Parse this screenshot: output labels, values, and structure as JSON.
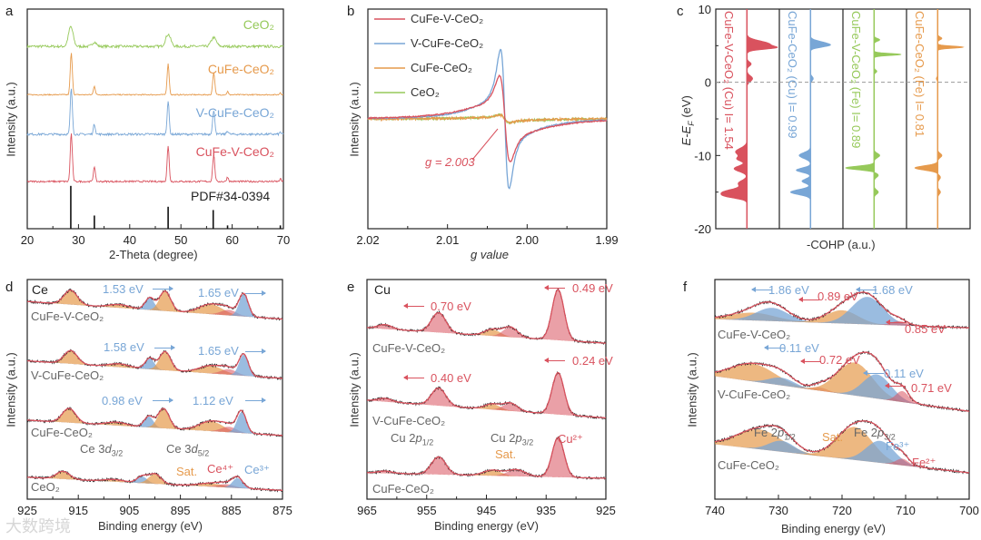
{
  "colors": {
    "red": "#d9525e",
    "blue": "#78a6d6",
    "orange": "#e69a4c",
    "green": "#96c95a",
    "black": "#222222",
    "fit": "#d9525e"
  },
  "watermark": "大数跨境",
  "chart_data": [
    {
      "id": "a",
      "type": "line",
      "panel_label": "a",
      "xlabel": "2-Theta (degree)",
      "ylabel": "Intensity (a.u.)",
      "xlim": [
        20,
        70
      ],
      "ylim": [
        0,
        10
      ],
      "xticks": [
        "20",
        "30",
        "40",
        "50",
        "60",
        "70"
      ],
      "xtick_values": [
        20,
        30,
        40,
        50,
        60,
        70
      ],
      "series": [
        {
          "name": "CeO₂",
          "color": "#96c95a",
          "baseline": [
            8.3,
            8.3
          ],
          "noise": 0.06,
          "peaks": [
            [
              28.5,
              0.9,
              0.45
            ],
            [
              33.1,
              0.2,
              0.4
            ],
            [
              47.5,
              0.55,
              0.5
            ],
            [
              56.4,
              0.4,
              0.5
            ]
          ]
        },
        {
          "name": "CuFe-CeO₂",
          "color": "#e69a4c",
          "baseline": [
            6.1,
            6.1
          ],
          "noise": 0.025,
          "peaks": [
            [
              28.6,
              1.9,
              0.2
            ],
            [
              33.1,
              0.4,
              0.18
            ],
            [
              47.5,
              1.4,
              0.2
            ],
            [
              56.4,
              1.0,
              0.2
            ],
            [
              59.1,
              0.15,
              0.15
            ],
            [
              69.4,
              0.1,
              0.15
            ]
          ]
        },
        {
          "name": "V-CuFe-CeO₂",
          "color": "#78a6d6",
          "baseline": [
            4.3,
            4.3
          ],
          "noise": 0.05,
          "peaks": [
            [
              28.6,
              2.1,
              0.2
            ],
            [
              33.1,
              0.45,
              0.2
            ],
            [
              47.5,
              1.5,
              0.2
            ],
            [
              56.4,
              1.05,
              0.22
            ],
            [
              59.1,
              0.15,
              0.2
            ],
            [
              69.4,
              0.1,
              0.15
            ]
          ]
        },
        {
          "name": "CuFe-V-CeO₂",
          "color": "#d9525e",
          "baseline": [
            2.15,
            2.15
          ],
          "noise": 0.04,
          "peaks": [
            [
              28.6,
              2.2,
              0.2
            ],
            [
              33.1,
              0.7,
              0.18
            ],
            [
              47.5,
              1.6,
              0.2
            ],
            [
              56.4,
              1.2,
              0.2
            ],
            [
              59.1,
              0.2,
              0.18
            ],
            [
              69.4,
              0.12,
              0.15
            ]
          ]
        }
      ],
      "reference": {
        "name": "PDF#34-0394",
        "sticks": [
          [
            28.5,
            1.95
          ],
          [
            33.1,
            0.6
          ],
          [
            47.5,
            1.0
          ],
          [
            56.3,
            0.85
          ],
          [
            59.1,
            0.15
          ],
          [
            69.4,
            0.15
          ]
        ]
      }
    },
    {
      "id": "b",
      "type": "line",
      "panel_label": "b",
      "xlabel": "g value",
      "ylabel": "Intensity (a.u.)",
      "xlim": [
        2.02,
        1.99
      ],
      "ylim": [
        -10,
        10
      ],
      "xticks": [
        "2.02",
        "2.01",
        "2.00",
        "1.99"
      ],
      "xtick_values": [
        2.02,
        2.01,
        2.0,
        1.99
      ],
      "annotation": "g = 2.003",
      "annotation_value": 2.003,
      "series": [
        {
          "name": "CuFe-V-CeO₂",
          "color": "#d9525e",
          "center": 2.0028,
          "amp": 3.6,
          "width": 0.0011,
          "broad": 0.9,
          "noise": 0.05
        },
        {
          "name": "V-CuFe-CeO₂",
          "color": "#78a6d6",
          "center": 2.0028,
          "amp": 6.0,
          "width": 0.0009,
          "broad": 1.0,
          "noise": 0.05
        },
        {
          "name": "CuFe-CeO₂",
          "color": "#e69a4c",
          "center": 2.0028,
          "amp": 0.3,
          "width": 0.001,
          "broad": 0.1,
          "noise": 0.1
        },
        {
          "name": "CeO₂",
          "color": "#96c95a",
          "center": 2.0028,
          "amp": 0.35,
          "width": 0.001,
          "broad": 0.1,
          "noise": 0.1
        }
      ]
    },
    {
      "id": "c",
      "type": "area",
      "panel_label": "c",
      "xlabel": "-COHP (a.u.)",
      "ylabel_main": "E-E",
      "ylabel_sub": "F",
      "ylabel_unit": " (eV)",
      "ylim": [
        -20,
        10
      ],
      "yticks": [
        "10",
        "0",
        "-10",
        "-20"
      ],
      "ytick_values": [
        10,
        0,
        -10,
        -20
      ],
      "fermi_level": 0,
      "columns": [
        {
          "name": "CuFe-V-CeO₂ (Cu) I= 1.54",
          "color": "#d9525e",
          "peaks": [
            [
              5.2,
              0.8,
              0.45
            ],
            [
              4.7,
              0.6,
              0.2
            ],
            [
              2.5,
              0.15,
              0.3
            ],
            [
              0.5,
              0.2,
              0.4
            ],
            [
              -9.5,
              -0.4,
              0.5
            ],
            [
              -10.5,
              -0.3,
              0.3
            ],
            [
              -11.8,
              -0.45,
              0.4
            ],
            [
              -13.8,
              -0.3,
              0.4
            ],
            [
              -15,
              -0.8,
              0.4
            ],
            [
              -15.6,
              -0.5,
              0.3
            ]
          ]
        },
        {
          "name": "CuFe-CeO₂ (Cu) I= 0.99",
          "color": "#78a6d6",
          "peaks": [
            [
              5.4,
              0.4,
              0.3
            ],
            [
              5.0,
              0.5,
              0.25
            ],
            [
              0.5,
              0.1,
              0.3
            ],
            [
              -10,
              -0.4,
              0.4
            ],
            [
              -12,
              -0.5,
              0.3
            ],
            [
              -13.5,
              -0.3,
              0.3
            ],
            [
              -15,
              -0.7,
              0.35
            ]
          ]
        },
        {
          "name": "CuFe-V-CeO₂ (Fe) I= 0.89",
          "color": "#96c95a",
          "peaks": [
            [
              5.8,
              0.2,
              0.2
            ],
            [
              3.8,
              0.95,
              0.15
            ],
            [
              1.5,
              0.1,
              0.2
            ],
            [
              -10,
              0.2,
              0.3
            ],
            [
              -11.7,
              -1.0,
              0.25
            ],
            [
              -12.7,
              0.15,
              0.3
            ],
            [
              -15,
              0.15,
              0.3
            ]
          ]
        },
        {
          "name": "CuFe-CeO₂ (Fe) I= 0.81",
          "color": "#e69a4c",
          "peaks": [
            [
              6.0,
              0.15,
              0.2
            ],
            [
              4.8,
              0.9,
              0.15
            ],
            [
              0.5,
              -0.05,
              0.2
            ],
            [
              -10,
              0.15,
              0.3
            ],
            [
              -11.7,
              -0.8,
              0.3
            ],
            [
              -13,
              0.1,
              0.3
            ],
            [
              -15,
              0.1,
              0.3
            ]
          ]
        }
      ]
    },
    {
      "id": "d",
      "type": "line",
      "panel_label": "d",
      "element": "Ce",
      "xlabel": "Binding energy (eV)",
      "ylabel": "Intensity (a.u.)",
      "xlim": [
        925,
        875
      ],
      "ylim": [
        0,
        10
      ],
      "xticks": [
        "925",
        "915",
        "905",
        "895",
        "885",
        "875"
      ],
      "xtick_values": [
        925,
        915,
        905,
        895,
        885,
        875
      ],
      "series": [
        {
          "name": "CuFe-V-CeO₂",
          "baseline": [
            9.0,
            8.2
          ],
          "peaks": [
            [
              916.5,
              0.65,
              1.3,
              "o"
            ],
            [
              907,
              0.15,
              2,
              "o"
            ],
            [
              901,
              0.55,
              0.9,
              "b"
            ],
            [
              898,
              0.9,
              1.1,
              "o"
            ],
            [
              889,
              0.45,
              2.3,
              "o"
            ],
            [
              885.5,
              0.25,
              1.5,
              "p"
            ],
            [
              882.6,
              1.0,
              0.9,
              "b"
            ]
          ],
          "shifts": [
            "1.53 eV",
            "1.65 eV"
          ]
        },
        {
          "name": "V-CuFe-CeO₂",
          "baseline": [
            6.3,
            5.5
          ],
          "peaks": [
            [
              916.5,
              0.6,
              1.3,
              "o"
            ],
            [
              907,
              0.15,
              2,
              "o"
            ],
            [
              901,
              0.5,
              0.9,
              "b"
            ],
            [
              898,
              0.85,
              1.1,
              "o"
            ],
            [
              889,
              0.35,
              2.3,
              "o"
            ],
            [
              885.5,
              0.25,
              1.5,
              "p"
            ],
            [
              882.6,
              0.95,
              0.9,
              "b"
            ]
          ],
          "shifts": [
            "1.58 eV",
            "1.65 eV"
          ]
        },
        {
          "name": "CuFe-CeO₂",
          "baseline": [
            3.6,
            2.9
          ],
          "peaks": [
            [
              916.8,
              0.65,
              1.3,
              "o"
            ],
            [
              907.5,
              0.15,
              2,
              "o"
            ],
            [
              901.2,
              0.5,
              0.9,
              "b"
            ],
            [
              898.3,
              0.9,
              1.1,
              "o"
            ],
            [
              889,
              0.45,
              2.3,
              "o"
            ],
            [
              885.5,
              0.25,
              1.5,
              "p"
            ],
            [
              883,
              0.95,
              0.9,
              "b"
            ]
          ],
          "shifts": [
            "0.98 eV",
            "1.12 eV"
          ]
        },
        {
          "name": "CeO₂",
          "baseline": [
            1.0,
            0.4
          ],
          "peaks": [
            [
              918,
              0.35,
              1.3,
              "o"
            ],
            [
              908,
              0.1,
              2,
              "o"
            ],
            [
              902.5,
              0.3,
              1,
              "b"
            ],
            [
              900,
              0.45,
              1.2,
              "o"
            ],
            [
              889,
              0.15,
              2.5,
              "o"
            ],
            [
              886,
              0.15,
              1.6,
              "p"
            ],
            [
              883.8,
              0.45,
              1,
              "b"
            ]
          ]
        }
      ],
      "labels": {
        "d32_main": "Ce 3",
        "d32_ital": "d",
        "d32_sub": "3/2",
        "d52_main": "Ce 3",
        "d52_ital": "d",
        "d52_sub": "5/2",
        "sat": "Sat.",
        "ce4": "Ce⁴⁺",
        "ce3": "Ce³⁺"
      }
    },
    {
      "id": "e",
      "type": "line",
      "panel_label": "e",
      "element": "Cu",
      "xlabel": "Binding energy (eV)",
      "ylabel": "Intensity (a.u.)",
      "xlim": [
        965,
        925
      ],
      "ylim": [
        0,
        10
      ],
      "xticks": [
        "965",
        "955",
        "945",
        "935",
        "925"
      ],
      "xtick_values": [
        965,
        955,
        945,
        935,
        925
      ],
      "series": [
        {
          "name": "CuFe-V-CeO₂",
          "baseline": [
            7.8,
            7.1
          ],
          "peaks": [
            [
              962,
              0.2,
              1.2,
              "p"
            ],
            [
              953,
              0.9,
              1.2,
              "p"
            ],
            [
              944,
              0.3,
              1.3,
              "o"
            ],
            [
              941,
              0.45,
              1.2,
              "p"
            ],
            [
              933,
              2.3,
              1.0,
              "p"
            ]
          ],
          "shifts": [
            "0.70 eV",
            "0.49 eV"
          ]
        },
        {
          "name": "V-CuFe-CeO₂",
          "baseline": [
            4.5,
            3.7
          ],
          "peaks": [
            [
              962,
              0.15,
              1.2,
              "p"
            ],
            [
              953,
              0.8,
              1.2,
              "p"
            ],
            [
              944,
              0.25,
              1.3,
              "o"
            ],
            [
              941,
              0.35,
              1.2,
              "p"
            ],
            [
              933,
              1.9,
              1.0,
              "p"
            ]
          ],
          "shifts": [
            "0.40 eV",
            "0.24 eV"
          ]
        },
        {
          "name": "CuFe-CeO₂",
          "baseline": [
            1.2,
            0.95
          ],
          "peaks": [
            [
              962,
              0.1,
              1.2,
              "p"
            ],
            [
              953,
              0.8,
              1.2,
              "p"
            ],
            [
              944,
              0.25,
              1.5,
              "o"
            ],
            [
              940,
              0.3,
              1.5,
              "p"
            ],
            [
              933,
              1.8,
              1.0,
              "p"
            ]
          ]
        }
      ],
      "labels": {
        "p12_main": "Cu 2",
        "p12_ital": "p",
        "p12_sub": "1/2",
        "p32_main": "Cu 2",
        "p32_ital": "p",
        "p32_sub": "3/2",
        "sat": "Sat.",
        "cu2": "Cu²⁺"
      }
    },
    {
      "id": "f",
      "type": "line",
      "panel_label": "f",
      "xlabel": "Binding energy (eV)",
      "ylabel": "Intensity (a.u.)",
      "xlim": [
        740,
        700
      ],
      "ylim": [
        0,
        10
      ],
      "xticks": [
        "740",
        "730",
        "720",
        "710",
        "700"
      ],
      "xtick_values": [
        740,
        730,
        720,
        710,
        700
      ],
      "series": [
        {
          "name": "CuFe-V-CeO₂",
          "baseline": [
            8.2,
            7.8
          ],
          "peaks": [
            [
              734,
              0.35,
              3.5,
              "o"
            ],
            [
              731,
              0.6,
              2.5,
              "b"
            ],
            [
              720,
              0.6,
              2.5,
              "o"
            ],
            [
              716,
              1.25,
              2.5,
              "b"
            ],
            [
              711,
              0.2,
              1.2,
              "p"
            ]
          ],
          "shifts": [
            "1.86 eV",
            "0.89 eV",
            "1.68 eV",
            "0.85 eV"
          ]
        },
        {
          "name": "V-CuFe-CeO₂",
          "baseline": [
            5.6,
            4.0
          ],
          "peaks": [
            [
              734,
              0.8,
              3.5,
              "o"
            ],
            [
              729.5,
              0.35,
              2,
              "b"
            ],
            [
              723.5,
              0.15,
              1.2,
              "p"
            ],
            [
              718,
              1.5,
              2.8,
              "o"
            ],
            [
              714.5,
              1.1,
              2.2,
              "b"
            ],
            [
              710.5,
              0.5,
              1.0,
              "p"
            ]
          ],
          "shifts": [
            "0.11 eV",
            "0.72 eV",
            "0.11 eV",
            "0.71 eV"
          ]
        },
        {
          "name": "CuFe-CeO₂",
          "baseline": [
            2.5,
            1.2
          ],
          "peaks": [
            [
              733,
              0.9,
              3.5,
              "o"
            ],
            [
              729.5,
              0.5,
              2,
              "b"
            ],
            [
              718,
              1.5,
              2.8,
              "o"
            ],
            [
              714,
              1.0,
              2.2,
              "b"
            ],
            [
              710.5,
              0.3,
              1.0,
              "p"
            ]
          ]
        }
      ],
      "labels": {
        "p12_main": "Fe 2",
        "p12_ital": "p",
        "p12_sub": "1/2",
        "p32_main": "Fe 2",
        "p32_ital": "p",
        "p32_sub": "3/2",
        "sat": "Sat.",
        "fe3": "Fe³⁺",
        "fe2": "Fe²⁺"
      }
    }
  ]
}
